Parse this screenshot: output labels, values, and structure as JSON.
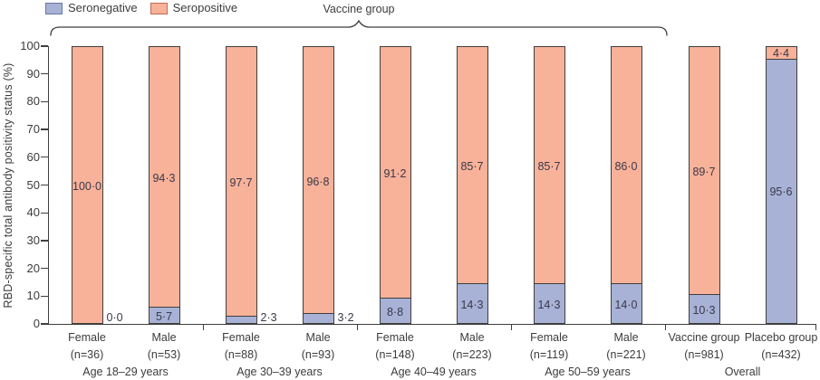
{
  "chart_data": {
    "type": "bar",
    "subtype": "stacked-percentage",
    "title": "",
    "ylabel": "RBD-specific total antibody positivity status (%)",
    "xlabel": "",
    "ylim": [
      0,
      100
    ],
    "yticks": [
      0,
      10,
      20,
      30,
      40,
      50,
      60,
      70,
      80,
      90,
      100
    ],
    "grid": false,
    "legend": {
      "position": "top-left",
      "items": [
        {
          "label": "Seronegative",
          "fill": "#a8b2d6",
          "border": "#68779f"
        },
        {
          "label": "Seropositive",
          "fill": "#f8b299",
          "border": "#bf6b54"
        }
      ]
    },
    "annotations": {
      "vaccine_group_brace": {
        "label": "Vaccine group",
        "covers_bars": [
          0,
          7
        ]
      }
    },
    "colors": {
      "seronegative": "#a8b2d6",
      "seropositive": "#f8b299",
      "outline": "#3f3f3f",
      "text": "#3c3c3c"
    },
    "categories": [
      [
        "Female",
        "(n=36)"
      ],
      [
        "Male",
        "(n=53)"
      ],
      [
        "Female",
        "(n=88)"
      ],
      [
        "Male",
        "(n=93)"
      ],
      [
        "Female",
        "(n=148)"
      ],
      [
        "Male",
        "(n=223)"
      ],
      [
        "Female",
        "(n=119)"
      ],
      [
        "Male",
        "(n=221)"
      ],
      [
        "Vaccine group",
        "(n=981)"
      ],
      [
        "Placebo group",
        "(n=432)"
      ]
    ],
    "series": [
      {
        "name": "Seronegative",
        "values": [
          0.0,
          5.7,
          2.3,
          3.2,
          8.8,
          14.3,
          14.3,
          14.0,
          10.3,
          95.6
        ]
      },
      {
        "name": "Seropositive",
        "values": [
          100.0,
          94.3,
          97.7,
          96.8,
          91.2,
          85.7,
          85.7,
          86.0,
          89.7,
          4.4
        ]
      }
    ],
    "bars": [
      {
        "cat_line1": "Female",
        "cat_line2": "(n=36)",
        "seronegative": 0.0,
        "seropositive": 100.0,
        "seroneg_label": "0·0",
        "seropos_label": "100·0",
        "seroneg_label_placement": "outside"
      },
      {
        "cat_line1": "Male",
        "cat_line2": "(n=53)",
        "seronegative": 5.7,
        "seropositive": 94.3,
        "seroneg_label": "5·7",
        "seropos_label": "94·3",
        "seroneg_label_placement": "inside"
      },
      {
        "cat_line1": "Female",
        "cat_line2": "(n=88)",
        "seronegative": 2.3,
        "seropositive": 97.7,
        "seroneg_label": "2·3",
        "seropos_label": "97·7",
        "seroneg_label_placement": "outside"
      },
      {
        "cat_line1": "Male",
        "cat_line2": "(n=93)",
        "seronegative": 3.2,
        "seropositive": 96.8,
        "seroneg_label": "3·2",
        "seropos_label": "96·8",
        "seroneg_label_placement": "outside"
      },
      {
        "cat_line1": "Female",
        "cat_line2": "(n=148)",
        "seronegative": 8.8,
        "seropositive": 91.2,
        "seroneg_label": "8·8",
        "seropos_label": "91·2",
        "seroneg_label_placement": "inside"
      },
      {
        "cat_line1": "Male",
        "cat_line2": "(n=223)",
        "seronegative": 14.3,
        "seropositive": 85.7,
        "seroneg_label": "14·3",
        "seropos_label": "85·7",
        "seroneg_label_placement": "inside"
      },
      {
        "cat_line1": "Female",
        "cat_line2": "(n=119)",
        "seronegative": 14.3,
        "seropositive": 85.7,
        "seroneg_label": "14·3",
        "seropos_label": "85·7",
        "seroneg_label_placement": "inside"
      },
      {
        "cat_line1": "Male",
        "cat_line2": "(n=221)",
        "seronegative": 14.0,
        "seropositive": 86.0,
        "seroneg_label": "14·0",
        "seropos_label": "86·0",
        "seroneg_label_placement": "inside"
      },
      {
        "cat_line1": "Vaccine group",
        "cat_line2": "(n=981)",
        "seronegative": 10.3,
        "seropositive": 89.7,
        "seroneg_label": "10·3",
        "seropos_label": "89·7",
        "seroneg_label_placement": "inside"
      },
      {
        "cat_line1": "Placebo group",
        "cat_line2": "(n=432)",
        "seronegative": 95.6,
        "seropositive": 4.4,
        "seroneg_label": "95·6",
        "seropos_label": "4·4",
        "seroneg_label_placement": "inside"
      }
    ],
    "groups": [
      {
        "label": "Age 18–29 years",
        "bar_indexes": [
          0,
          1
        ]
      },
      {
        "label": "Age 30–39 years",
        "bar_indexes": [
          2,
          3
        ]
      },
      {
        "label": "Age 40–49 years",
        "bar_indexes": [
          4,
          5
        ]
      },
      {
        "label": "Age 50–59 years",
        "bar_indexes": [
          6,
          7
        ]
      },
      {
        "label": "Overall",
        "bar_indexes": [
          8,
          9
        ]
      }
    ]
  }
}
